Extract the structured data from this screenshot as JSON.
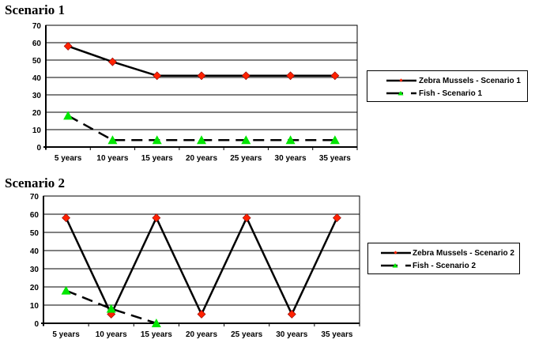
{
  "chart_data": [
    {
      "type": "line",
      "title": "Scenario 1",
      "categories": [
        "5 years",
        "10 years",
        "15 years",
        "20 years",
        "25 years",
        "30 years",
        "35 years"
      ],
      "series": [
        {
          "name": "Zebra Mussels - Scenario 1",
          "values": [
            58,
            49,
            41,
            41,
            41,
            41,
            41
          ],
          "color": "#000000",
          "marker": "diamond",
          "marker_color": "#ff2200",
          "dash": "solid"
        },
        {
          "name": "Fish - Scenario 1",
          "values": [
            18,
            4,
            4,
            4,
            4,
            4,
            4
          ],
          "color": "#000000",
          "marker": "triangle",
          "marker_color": "#00e600",
          "dash": "dashed"
        }
      ],
      "xlabel": "",
      "ylabel": "",
      "ylim": [
        0,
        70
      ],
      "yticks": [
        0,
        10,
        20,
        30,
        40,
        50,
        60,
        70
      ],
      "grid": true,
      "legend_position": "right"
    },
    {
      "type": "line",
      "title": "Scenario 2",
      "categories": [
        "5 years",
        "10 years",
        "15 years",
        "20 years",
        "25 years",
        "30 years",
        "35 years"
      ],
      "series": [
        {
          "name": "Zebra Mussels - Scenario 2",
          "values": [
            58,
            5,
            58,
            5,
            58,
            5,
            58
          ],
          "color": "#000000",
          "marker": "diamond",
          "marker_color": "#ff2200",
          "dash": "solid"
        },
        {
          "name": "Fish - Scenario 2",
          "values": [
            18,
            8,
            0,
            null,
            null,
            null,
            null
          ],
          "color": "#000000",
          "marker": "triangle",
          "marker_color": "#00e600",
          "dash": "dashed"
        }
      ],
      "xlabel": "",
      "ylabel": "",
      "ylim": [
        0,
        70
      ],
      "yticks": [
        0,
        10,
        20,
        30,
        40,
        50,
        60,
        70
      ],
      "grid": true,
      "legend_position": "right"
    }
  ],
  "charts": [
    {
      "title": "Scenario 1",
      "legend": [
        "Zebra Mussels - Scenario 1",
        "Fish - Scenario 1"
      ]
    },
    {
      "title": "Scenario 2",
      "legend": [
        "Zebra Mussels - Scenario 2",
        "Fish - Scenario 2"
      ]
    }
  ]
}
